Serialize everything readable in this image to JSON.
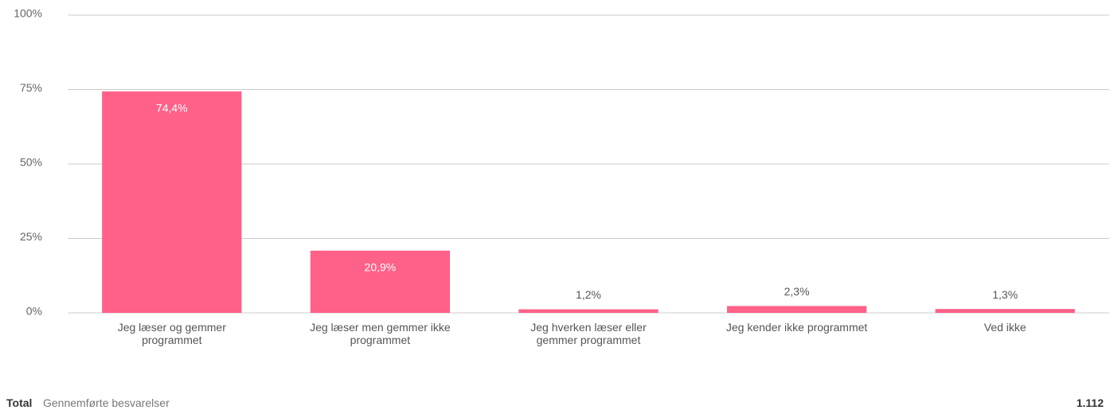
{
  "chart_data": {
    "type": "bar",
    "categories": [
      "Jeg læser og gemmer programmet",
      "Jeg læser men gemmer ikke programmet",
      "Jeg hverken læser eller gemmer programmet",
      "Jeg kender ikke programmet",
      "Ved ikke"
    ],
    "values": [
      74.4,
      20.9,
      1.2,
      2.3,
      1.3
    ],
    "value_labels": [
      "74,4%",
      "20,9%",
      "1,2%",
      "2,3%",
      "1,3%"
    ],
    "color": "#ff6188",
    "ylim": [
      0,
      100
    ],
    "yticks": [
      {
        "value": 0,
        "label": "0%"
      },
      {
        "value": 25,
        "label": "25%"
      },
      {
        "value": 50,
        "label": "50%"
      },
      {
        "value": 75,
        "label": "75%"
      },
      {
        "value": 100,
        "label": "100%"
      }
    ],
    "grid": true
  },
  "footer": {
    "label": "Total",
    "description": "Gennemførte besvarelser",
    "total": "1.112"
  }
}
